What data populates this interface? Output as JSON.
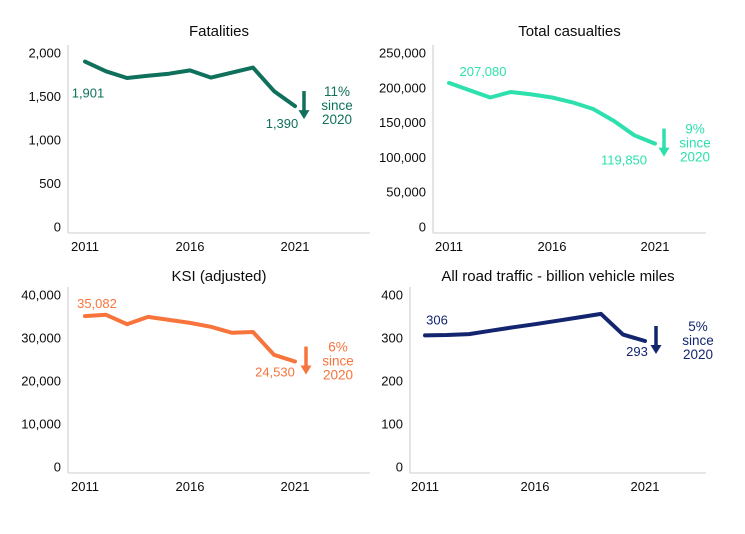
{
  "style_colors": {
    "background": "#ffffff",
    "axis_line": "#d6d6d6",
    "text": "#0b0c0c"
  },
  "chart_data": [
    {
      "type": "line",
      "title": "Fatalities",
      "x": [
        2011,
        2012,
        2013,
        2014,
        2015,
        2016,
        2017,
        2018,
        2019,
        2020,
        2021
      ],
      "values": [
        1901,
        1790,
        1713,
        1738,
        1762,
        1800,
        1717,
        1775,
        1832,
        1562,
        1390
      ],
      "x_tick_labels": [
        "2011",
        "2016",
        "2021"
      ],
      "y_tick_labels": [
        "2,000",
        "1,500",
        "1,000",
        "500",
        "0"
      ],
      "xlim": [
        2011,
        2024.5
      ],
      "ylim": [
        0,
        2000
      ],
      "grid": false,
      "legend": "none",
      "color": "#0f705c",
      "start_label": "1,901",
      "end_label": "1,390",
      "annotation_lines": [
        "11%",
        "since",
        "2020"
      ],
      "annotation_icon": "down-arrow"
    },
    {
      "type": "line",
      "title": "Total casualties",
      "x": [
        2011,
        2012,
        2013,
        2014,
        2015,
        2016,
        2017,
        2018,
        2019,
        2020,
        2021
      ],
      "values": [
        207080,
        196500,
        186000,
        194000,
        190500,
        186000,
        179000,
        169500,
        152500,
        131700,
        119850
      ],
      "x_tick_labels": [
        "2011",
        "2016",
        "2021"
      ],
      "y_tick_labels": [
        "250,000",
        "200,000",
        "150,000",
        "100,000",
        "50,000",
        "0"
      ],
      "xlim": [
        2011,
        2024.5
      ],
      "ylim": [
        0,
        250000
      ],
      "grid": false,
      "legend": "none",
      "color": "#2ee0ad",
      "start_label": "207,080",
      "end_label": "119,850",
      "annotation_lines": [
        "9%",
        "since",
        "2020"
      ],
      "annotation_icon": "down-arrow"
    },
    {
      "type": "line",
      "title": "KSI (adjusted)",
      "x": [
        2011,
        2012,
        2013,
        2014,
        2015,
        2016,
        2017,
        2018,
        2019,
        2020,
        2021
      ],
      "values": [
        35082,
        35400,
        33200,
        34900,
        34200,
        33500,
        32600,
        31200,
        31400,
        26100,
        24530
      ],
      "x_tick_labels": [
        "2011",
        "2016",
        "2021"
      ],
      "y_tick_labels": [
        "40,000",
        "30,000",
        "20,000",
        "10,000",
        "0"
      ],
      "xlim": [
        2011,
        2024.5
      ],
      "ylim": [
        0,
        40000
      ],
      "grid": false,
      "legend": "none",
      "color": "#f7743c",
      "start_label": "35,082",
      "end_label": "24,530",
      "annotation_lines": [
        "6%",
        "since",
        "2020"
      ],
      "annotation_icon": "down-arrow"
    },
    {
      "type": "line",
      "title": "All road traffic - billion vehicle miles",
      "x": [
        2011,
        2012,
        2013,
        2014,
        2015,
        2016,
        2017,
        2018,
        2019,
        2020,
        2021
      ],
      "values": [
        306,
        307,
        309,
        317,
        325,
        332,
        340,
        348,
        356,
        308,
        293
      ],
      "x_tick_labels": [
        "2011",
        "2016",
        "2021"
      ],
      "y_tick_labels": [
        "400",
        "300",
        "200",
        "100",
        "0"
      ],
      "xlim": [
        2011,
        2024.5
      ],
      "ylim": [
        0,
        400
      ],
      "grid": false,
      "legend": "none",
      "color": "#13256e",
      "start_label": "306",
      "end_label": "293",
      "annotation_lines": [
        "5%",
        "since",
        "2020"
      ],
      "annotation_icon": "down-arrow"
    }
  ]
}
